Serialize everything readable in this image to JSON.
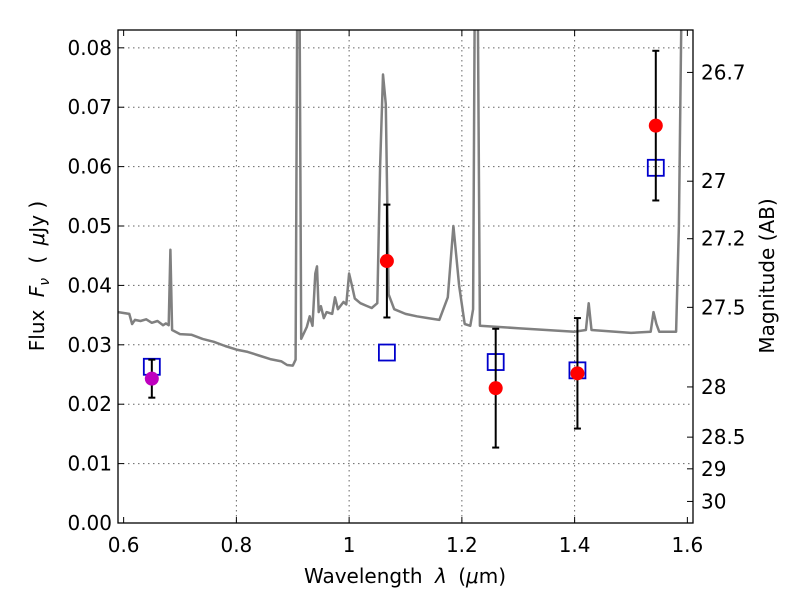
{
  "chart_data": {
    "type": "scatter",
    "title": "",
    "xlabel_prefix": "Wavelength",
    "xlabel_symbol": "λ",
    "xlabel_unit_open": "(",
    "xlabel_unit_mu": "μ",
    "xlabel_unit_rest": "m)",
    "ylabel_prefix": "Flux",
    "ylabel_symbol": "F",
    "ylabel_symbol_sub": "ν",
    "ylabel_unit_open": "(",
    "ylabel_unit_mu": "μ",
    "ylabel_unit_rest": "Jy )",
    "ylabel_right": "Magnitude (AB)",
    "xlim": [
      0.59,
      1.61
    ],
    "ylim": [
      0.0,
      0.083
    ],
    "x_ticks": [
      0.6,
      0.8,
      1.0,
      1.2,
      1.4,
      1.6
    ],
    "x_tick_labels": [
      "0.6",
      "0.8",
      "1",
      "1.2",
      "1.4",
      "1.6"
    ],
    "y_ticks": [
      0.0,
      0.01,
      0.02,
      0.03,
      0.04,
      0.05,
      0.06,
      0.07,
      0.08
    ],
    "y_tick_labels": [
      "0.00",
      "0.01",
      "0.02",
      "0.03",
      "0.04",
      "0.05",
      "0.06",
      "0.07",
      "0.08"
    ],
    "right_axis_ticks": [
      "26.7",
      "27",
      "27.2",
      "27.5",
      "28",
      "28.5",
      "29",
      "30"
    ],
    "grid": true,
    "colors": {
      "model": "#808080",
      "observed": "#ff0000",
      "observed_first": "#bf00bf",
      "model_photometry": "#0000cc",
      "errorbar": "#000000"
    },
    "series": [
      {
        "type": "line",
        "points": [
          [
            0.59,
            0.0355
          ],
          [
            0.61,
            0.0352
          ],
          [
            0.615,
            0.0335
          ],
          [
            0.62,
            0.0342
          ],
          [
            0.63,
            0.034
          ],
          [
            0.64,
            0.0343
          ],
          [
            0.65,
            0.0337
          ],
          [
            0.66,
            0.034
          ],
          [
            0.67,
            0.0333
          ],
          [
            0.675,
            0.0336
          ],
          [
            0.68,
            0.0333
          ],
          [
            0.683,
            0.046
          ],
          [
            0.686,
            0.0325
          ],
          [
            0.7,
            0.0318
          ],
          [
            0.72,
            0.0317
          ],
          [
            0.74,
            0.031
          ],
          [
            0.76,
            0.0305
          ],
          [
            0.78,
            0.0298
          ],
          [
            0.8,
            0.0292
          ],
          [
            0.82,
            0.0288
          ],
          [
            0.84,
            0.0282
          ],
          [
            0.86,
            0.0276
          ],
          [
            0.88,
            0.0272
          ],
          [
            0.89,
            0.0266
          ],
          [
            0.9,
            0.0265
          ],
          [
            0.905,
            0.0275
          ],
          [
            0.908,
            0.09
          ],
          [
            0.912,
            0.09
          ],
          [
            0.915,
            0.031
          ],
          [
            0.925,
            0.033
          ],
          [
            0.93,
            0.0348
          ],
          [
            0.935,
            0.0332
          ],
          [
            0.94,
            0.042
          ],
          [
            0.943,
            0.0432
          ],
          [
            0.946,
            0.0355
          ],
          [
            0.95,
            0.0365
          ],
          [
            0.955,
            0.0345
          ],
          [
            0.96,
            0.0355
          ],
          [
            0.97,
            0.0352
          ],
          [
            0.975,
            0.038
          ],
          [
            0.98,
            0.036
          ],
          [
            0.99,
            0.0372
          ],
          [
            0.995,
            0.0368
          ],
          [
            1.0,
            0.042
          ],
          [
            1.005,
            0.04
          ],
          [
            1.01,
            0.0378
          ],
          [
            1.02,
            0.037
          ],
          [
            1.03,
            0.0366
          ],
          [
            1.04,
            0.0362
          ],
          [
            1.05,
            0.037
          ],
          [
            1.055,
            0.06
          ],
          [
            1.06,
            0.0755
          ],
          [
            1.065,
            0.0705
          ],
          [
            1.07,
            0.0385
          ],
          [
            1.08,
            0.036
          ],
          [
            1.1,
            0.0352
          ],
          [
            1.12,
            0.0348
          ],
          [
            1.14,
            0.0345
          ],
          [
            1.16,
            0.0342
          ],
          [
            1.175,
            0.038
          ],
          [
            1.185,
            0.05
          ],
          [
            1.195,
            0.04
          ],
          [
            1.205,
            0.0335
          ],
          [
            1.215,
            0.0332
          ],
          [
            1.22,
            0.036
          ],
          [
            1.223,
            0.09
          ],
          [
            1.228,
            0.09
          ],
          [
            1.232,
            0.0332
          ],
          [
            1.3,
            0.0328
          ],
          [
            1.35,
            0.0325
          ],
          [
            1.4,
            0.0322
          ],
          [
            1.42,
            0.0325
          ],
          [
            1.425,
            0.037
          ],
          [
            1.43,
            0.0325
          ],
          [
            1.5,
            0.032
          ],
          [
            1.535,
            0.0322
          ],
          [
            1.54,
            0.0355
          ],
          [
            1.545,
            0.0335
          ],
          [
            1.55,
            0.0322
          ],
          [
            1.58,
            0.0322
          ],
          [
            1.585,
            0.05
          ],
          [
            1.59,
            0.09
          ]
        ]
      },
      {
        "type": "scatter",
        "points": [
          {
            "x": 0.65,
            "y": 0.0243,
            "yerr": 0.0032
          },
          {
            "x": 1.067,
            "y": 0.0441,
            "yerr": 0.0095
          },
          {
            "x": 1.26,
            "y": 0.0227,
            "yerr": 0.01
          },
          {
            "x": 1.405,
            "y": 0.0252,
            "yerr": 0.0093
          },
          {
            "x": 1.544,
            "y": 0.0669,
            "yerr": 0.0126
          }
        ]
      },
      {
        "type": "scatter",
        "points": [
          {
            "x": 0.65,
            "y": 0.0263
          },
          {
            "x": 1.067,
            "y": 0.0287
          },
          {
            "x": 1.26,
            "y": 0.0271
          },
          {
            "x": 1.405,
            "y": 0.0257
          },
          {
            "x": 1.544,
            "y": 0.0598
          }
        ]
      }
    ]
  }
}
